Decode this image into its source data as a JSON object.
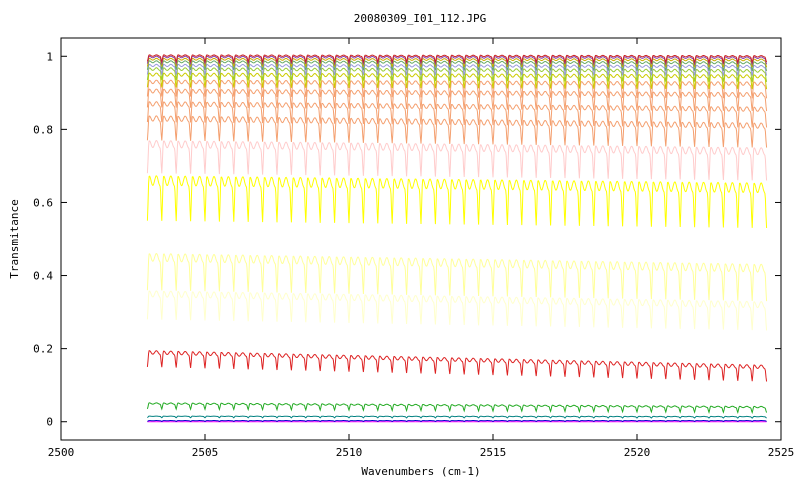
{
  "chart_data": {
    "type": "line",
    "title": "20080309_I01_112.JPG",
    "xlabel": "Wavenumbers (cm-1)",
    "ylabel": "Transmitance",
    "xlim": [
      2500,
      2525
    ],
    "ylim": [
      -0.05,
      1.05
    ],
    "xticks": [
      2500,
      2505,
      2510,
      2515,
      2520,
      2525
    ],
    "yticks": [
      0,
      0.2,
      0.4,
      0.6,
      0.8,
      1
    ],
    "ytick_labels": [
      "0",
      "0.2",
      "0.4",
      "0.6",
      "0.8",
      "1"
    ],
    "grid": false,
    "legend": "none",
    "x_range_of_data": [
      2503.0,
      2524.5
    ],
    "line_spacing_cm1": 0.5,
    "series": [
      {
        "level_start": 0.0,
        "level_end": 0.0,
        "dip": 0.0,
        "color": "#ff00ff"
      },
      {
        "level_start": 0.003,
        "level_end": 0.003,
        "dip": 0.002,
        "color": "#0000cc"
      },
      {
        "level_start": 0.015,
        "level_end": 0.014,
        "dip": 0.004,
        "color": "#008080"
      },
      {
        "level_start": 0.05,
        "level_end": 0.04,
        "dip": 0.015,
        "color": "#22aa22"
      },
      {
        "level_start": 0.19,
        "level_end": 0.15,
        "dip": 0.04,
        "color": "#dd2222"
      },
      {
        "level_start": 0.35,
        "level_end": 0.32,
        "dip": 0.07,
        "color": "#ffffcc"
      },
      {
        "level_start": 0.45,
        "level_end": 0.42,
        "dip": 0.09,
        "color": "#ffff99"
      },
      {
        "level_start": 0.66,
        "level_end": 0.64,
        "dip": 0.11,
        "color": "#ffff00"
      },
      {
        "level_start": 0.76,
        "level_end": 0.74,
        "dip": 0.08,
        "color": "#ffcccc"
      },
      {
        "level_start": 0.83,
        "level_end": 0.81,
        "dip": 0.06,
        "color": "#f4a070"
      },
      {
        "level_start": 0.87,
        "level_end": 0.855,
        "dip": 0.05,
        "color": "#f4a070"
      },
      {
        "level_start": 0.905,
        "level_end": 0.895,
        "dip": 0.045,
        "color": "#f4a070"
      },
      {
        "level_start": 0.93,
        "level_end": 0.925,
        "dip": 0.04,
        "color": "#f4a070"
      },
      {
        "level_start": 0.95,
        "level_end": 0.945,
        "dip": 0.035,
        "color": "#cccc00"
      },
      {
        "level_start": 0.965,
        "level_end": 0.96,
        "dip": 0.03,
        "color": "#99cc33"
      },
      {
        "level_start": 0.975,
        "level_end": 0.972,
        "dip": 0.025,
        "color": "#9999dd"
      },
      {
        "level_start": 0.985,
        "level_end": 0.982,
        "dip": 0.022,
        "color": "#66aa66"
      },
      {
        "level_start": 0.992,
        "level_end": 0.99,
        "dip": 0.02,
        "color": "#ccaa00"
      },
      {
        "level_start": 0.998,
        "level_end": 0.996,
        "dip": 0.018,
        "color": "#8844aa"
      },
      {
        "level_start": 1.002,
        "level_end": 1.0,
        "dip": 0.016,
        "color": "#cc2222"
      }
    ]
  }
}
